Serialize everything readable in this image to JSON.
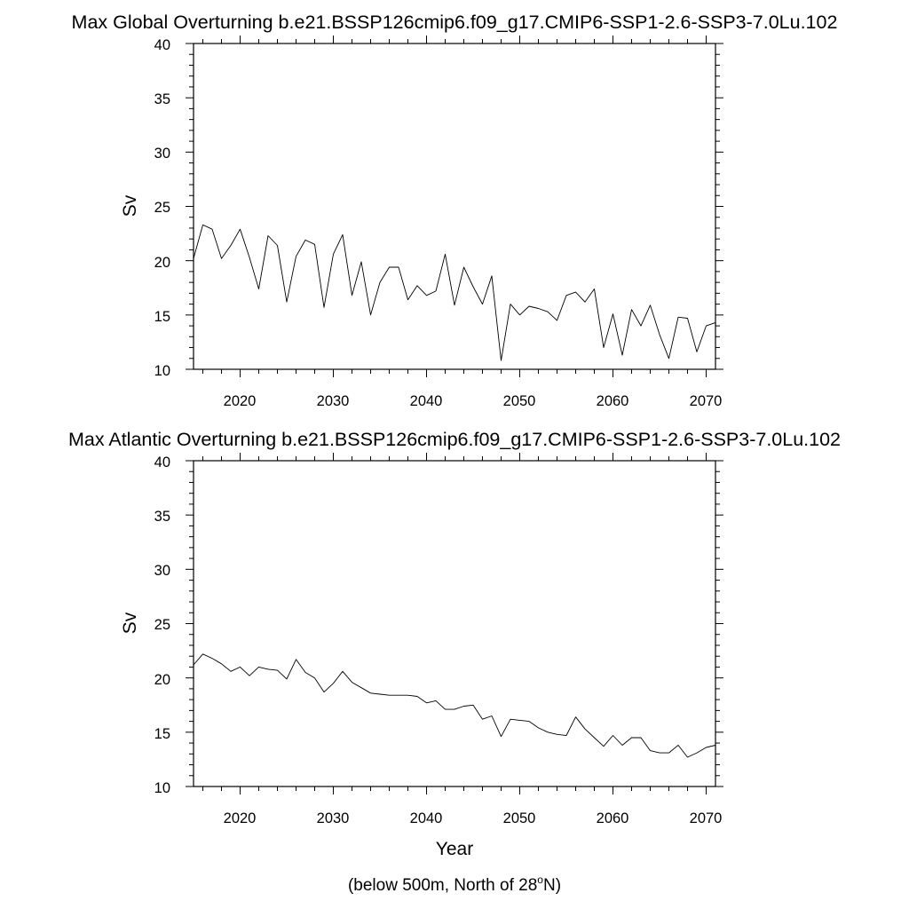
{
  "chart_data": [
    {
      "type": "line",
      "title": "Max Global Overturning b.e21.BSSP126cmip6.f09_g17.CMIP6-SSP1-2.6-SSP3-7.0Lu.102",
      "ylabel": "Sv",
      "xlabel": "",
      "xlim": [
        2015,
        2071
      ],
      "ylim": [
        10,
        40
      ],
      "x_ticks": [
        "2020",
        "2030",
        "2040",
        "2050",
        "2060",
        "2070"
      ],
      "y_ticks": [
        "10",
        "15",
        "20",
        "25",
        "30",
        "35",
        "40"
      ],
      "grid": false,
      "series": [
        {
          "x": [
            2015,
            2016,
            2017,
            2018,
            2019,
            2020,
            2021,
            2022,
            2023,
            2024,
            2025,
            2026,
            2027,
            2028,
            2029,
            2030,
            2031,
            2032,
            2033,
            2034,
            2035,
            2036,
            2037,
            2038,
            2039,
            2040,
            2041,
            2042,
            2043,
            2044,
            2045,
            2046,
            2047,
            2048,
            2049,
            2050,
            2051,
            2052,
            2053,
            2054,
            2055,
            2056,
            2057,
            2058,
            2059,
            2060,
            2061,
            2062,
            2063,
            2064,
            2065,
            2066,
            2067,
            2068,
            2069,
            2070,
            2071
          ],
          "values": [
            20.2,
            23.3,
            22.9,
            20.2,
            21.4,
            22.9,
            20.3,
            17.4,
            22.3,
            21.4,
            16.2,
            20.4,
            21.9,
            21.5,
            15.7,
            20.6,
            22.4,
            16.8,
            19.9,
            15.0,
            18.0,
            19.4,
            19.4,
            16.4,
            17.7,
            16.8,
            17.2,
            20.6,
            15.9,
            19.4,
            17.6,
            16.0,
            18.6,
            10.8,
            16.0,
            15.0,
            15.8,
            15.6,
            15.3,
            14.5,
            16.8,
            17.1,
            16.2,
            17.4,
            12.0,
            15.1,
            11.3,
            15.5,
            14.0,
            15.9,
            13.2,
            11.0,
            14.8,
            14.7,
            11.6,
            14.0,
            14.3
          ]
        }
      ]
    },
    {
      "type": "line",
      "title": "Max Atlantic Overturning b.e21.BSSP126cmip6.f09_g17.CMIP6-SSP1-2.6-SSP3-7.0Lu.102",
      "ylabel": "Sv",
      "xlabel": "Year",
      "xlim": [
        2015,
        2071
      ],
      "ylim": [
        10,
        40
      ],
      "x_ticks": [
        "2020",
        "2030",
        "2040",
        "2050",
        "2060",
        "2070"
      ],
      "y_ticks": [
        "10",
        "15",
        "20",
        "25",
        "30",
        "35",
        "40"
      ],
      "grid": false,
      "series": [
        {
          "x": [
            2015,
            2016,
            2017,
            2018,
            2019,
            2020,
            2021,
            2022,
            2023,
            2024,
            2025,
            2026,
            2027,
            2028,
            2029,
            2030,
            2031,
            2032,
            2033,
            2034,
            2035,
            2036,
            2037,
            2038,
            2039,
            2040,
            2041,
            2042,
            2043,
            2044,
            2045,
            2046,
            2047,
            2048,
            2049,
            2050,
            2051,
            2052,
            2053,
            2054,
            2055,
            2056,
            2057,
            2058,
            2059,
            2060,
            2061,
            2062,
            2063,
            2064,
            2065,
            2066,
            2067,
            2068,
            2069,
            2070,
            2071
          ],
          "values": [
            21.2,
            22.2,
            21.8,
            21.3,
            20.6,
            21.0,
            20.2,
            21.0,
            20.8,
            20.7,
            19.9,
            21.7,
            20.5,
            20.0,
            18.7,
            19.5,
            20.6,
            19.6,
            19.1,
            18.6,
            18.5,
            18.4,
            18.4,
            18.4,
            18.3,
            17.7,
            17.9,
            17.1,
            17.1,
            17.4,
            17.5,
            16.2,
            16.5,
            14.6,
            16.2,
            16.1,
            16.0,
            15.4,
            15.0,
            14.8,
            14.7,
            16.4,
            15.3,
            14.5,
            13.7,
            14.7,
            13.8,
            14.5,
            14.5,
            13.3,
            13.1,
            13.1,
            13.8,
            12.7,
            13.1,
            13.6,
            13.8
          ]
        }
      ]
    }
  ],
  "footnote": {
    "prefix": "(below 500m, North of 28",
    "superscript": "o",
    "suffix": "N)"
  }
}
